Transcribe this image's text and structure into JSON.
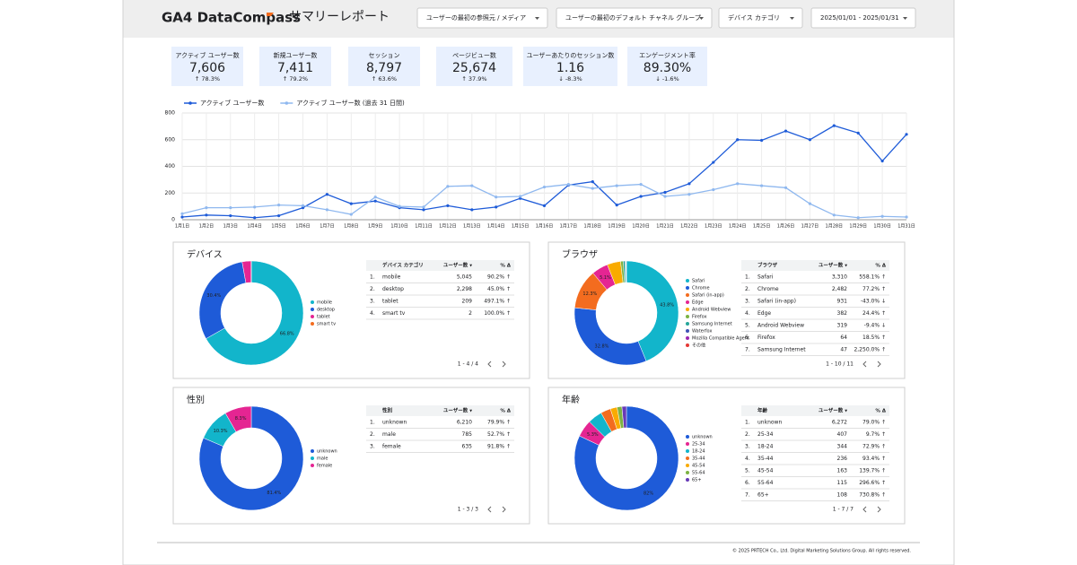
{
  "header": {
    "logo": "GA4 DataCompass",
    "title": "サマリーレポート",
    "filters": [
      "ユーザーの最初の参照元 / メディア",
      "ユーザーの最初のデフォルト チャネル グループ",
      "デバイス カテゴリ",
      "2025/01/01 - 2025/01/31"
    ]
  },
  "kpis": [
    {
      "label": "アクティブ ユーザー数",
      "value": "7,606",
      "delta": "↑ 78.3%"
    },
    {
      "label": "新規ユーザー数",
      "value": "7,411",
      "delta": "↑ 79.2%"
    },
    {
      "label": "セッション",
      "value": "8,797",
      "delta": "↑ 63.6%"
    },
    {
      "label": "ページビュー数",
      "value": "25,674",
      "delta": "↑ 37.9%"
    },
    {
      "label": "ユーザーあたりのセッション数",
      "value": "1.16",
      "delta": "↓ -8.3%"
    },
    {
      "label": "エンゲージメント率",
      "value": "89.30%",
      "delta": "↓ -1.6%"
    }
  ],
  "chart_data": [
    {
      "type": "line",
      "categories": [
        "1月1日",
        "1月2日",
        "1月3日",
        "1月4日",
        "1月5日",
        "1月6日",
        "1月7日",
        "1月8日",
        "1月9日",
        "1月10日",
        "1月11日",
        "1月12日",
        "1月13日",
        "1月14日",
        "1月15日",
        "1月16日",
        "1月17日",
        "1月18日",
        "1月19日",
        "1月20日",
        "1月21日",
        "1月22日",
        "1月23日",
        "1月24日",
        "1月25日",
        "1月26日",
        "1月27日",
        "1月28日",
        "1月29日",
        "1月30日",
        "1月31日"
      ],
      "series": [
        {
          "name": "アクティブ ユーザー数",
          "color": "#1e5bd8",
          "values": [
            20,
            35,
            30,
            15,
            30,
            90,
            190,
            120,
            140,
            90,
            75,
            105,
            75,
            95,
            160,
            105,
            260,
            285,
            110,
            175,
            205,
            270,
            430,
            600,
            595,
            665,
            600,
            705,
            650,
            440,
            640
          ]
        },
        {
          "name": "アクティブ ユーザー数 (過去 31 日間)",
          "color": "#8fb8ef",
          "values": [
            45,
            90,
            90,
            95,
            110,
            105,
            75,
            40,
            170,
            100,
            95,
            250,
            255,
            170,
            175,
            245,
            265,
            235,
            255,
            265,
            175,
            190,
            225,
            270,
            255,
            240,
            120,
            35,
            15,
            25,
            20
          ]
        }
      ],
      "ylim": [
        0,
        800
      ],
      "yticks": [
        0,
        200,
        400,
        600,
        800
      ],
      "grid": true
    },
    {
      "type": "pie",
      "categories": [
        "mobile",
        "desktop",
        "tablet",
        "smart tv"
      ],
      "values": [
        66.8,
        30.4,
        2.8,
        0.03
      ],
      "value_labels": [
        "66.8%",
        "30.4%",
        null,
        null
      ],
      "colors": [
        "#12b5cb",
        "#1e5bd8",
        "#e52592",
        "#f36c1f"
      ]
    },
    {
      "type": "pie",
      "categories": [
        "Safari",
        "Chrome",
        "Safari (in-app)",
        "Edge",
        "Android Webview",
        "Firefox",
        "Samsung Internet",
        "Waterfox",
        "Mozilla Compatible Agent",
        "その他"
      ],
      "values": [
        43.8,
        32.8,
        12.3,
        5.1,
        4.2,
        0.8,
        0.6,
        0.2,
        0.1,
        0.1
      ],
      "value_labels": [
        "43.8%",
        "32.8%",
        "12.3%",
        "5.1%",
        null,
        null,
        null,
        null,
        null,
        null
      ],
      "colors": [
        "#12b5cb",
        "#1e5bd8",
        "#f36c1f",
        "#e52592",
        "#f9ab00",
        "#7cb342",
        "#26a69a",
        "#3f51b5",
        "#9c27b0",
        "#e53935"
      ]
    },
    {
      "type": "pie",
      "categories": [
        "unknown",
        "male",
        "female"
      ],
      "values": [
        81.4,
        10.3,
        8.3
      ],
      "value_labels": [
        "81.4%",
        "10.3%",
        "8.3%"
      ],
      "colors": [
        "#1e5bd8",
        "#12b5cb",
        "#e52592"
      ]
    },
    {
      "type": "pie",
      "categories": [
        "unknown",
        "25-34",
        "18-24",
        "35-44",
        "45-54",
        "55-64",
        "65+"
      ],
      "values": [
        82,
        5.3,
        4.5,
        3.1,
        2.1,
        1.5,
        1.4
      ],
      "value_labels": [
        "82%",
        "5.3%",
        null,
        null,
        null,
        null,
        null
      ],
      "colors": [
        "#1e5bd8",
        "#e52592",
        "#12b5cb",
        "#f36c1f",
        "#f9ab00",
        "#7cb342",
        "#673ab7"
      ]
    }
  ],
  "panels": [
    {
      "title": "デバイス",
      "table": {
        "headers": [
          "デバイス カテゴリ",
          "ユーザー数 ▾",
          "% Δ"
        ],
        "rows": [
          [
            "1.",
            "mobile",
            "5,045",
            "90.2% ↑"
          ],
          [
            "2.",
            "desktop",
            "2,298",
            "45.0% ↑"
          ],
          [
            "3.",
            "tablet",
            "209",
            "497.1% ↑"
          ],
          [
            "4.",
            "smart tv",
            "2",
            "100.0% ↑"
          ]
        ],
        "pagination": "1 - 4 / 4"
      }
    },
    {
      "title": "ブラウザ",
      "table": {
        "headers": [
          "ブラウザ",
          "ユーザー数 ▾",
          "% Δ"
        ],
        "rows": [
          [
            "1.",
            "Safari",
            "3,310",
            "558.1% ↑"
          ],
          [
            "2.",
            "Chrome",
            "2,482",
            "77.2% ↑"
          ],
          [
            "3.",
            "Safari (in-app)",
            "931",
            "-43.0% ↓"
          ],
          [
            "4.",
            "Edge",
            "382",
            "24.4% ↑"
          ],
          [
            "5.",
            "Android Webview",
            "319",
            "-9.4% ↓"
          ],
          [
            "6.",
            "Firefox",
            "64",
            "18.5% ↑"
          ],
          [
            "7.",
            "Samsung Internet",
            "47",
            "2,250.0% ↑"
          ]
        ],
        "pagination": "1 - 10 / 11"
      }
    },
    {
      "title": "性別",
      "table": {
        "headers": [
          "性別",
          "ユーザー数 ▾",
          "% Δ"
        ],
        "rows": [
          [
            "1.",
            "unknown",
            "6,210",
            "79.9% ↑"
          ],
          [
            "2.",
            "male",
            "785",
            "52.7% ↑"
          ],
          [
            "3.",
            "female",
            "635",
            "91.8% ↑"
          ]
        ],
        "pagination": "1 - 3 / 3"
      }
    },
    {
      "title": "年齢",
      "table": {
        "headers": [
          "年齢",
          "ユーザー数 ▾",
          "% Δ"
        ],
        "rows": [
          [
            "1.",
            "unknown",
            "6,272",
            "79.0% ↑"
          ],
          [
            "2.",
            "25-34",
            "407",
            "9.7% ↑"
          ],
          [
            "3.",
            "18-24",
            "344",
            "72.9% ↑"
          ],
          [
            "4.",
            "35-44",
            "236",
            "93.4% ↑"
          ],
          [
            "5.",
            "45-54",
            "163",
            "139.7% ↑"
          ],
          [
            "6.",
            "55-64",
            "115",
            "296.6% ↑"
          ],
          [
            "7.",
            "65+",
            "108",
            "730.8% ↑"
          ]
        ],
        "pagination": "1 - 7 / 7"
      }
    }
  ],
  "footer": "© 2025 PRTECH Co., Ltd. Digital Marketing Solutions Group. All rights reserved."
}
